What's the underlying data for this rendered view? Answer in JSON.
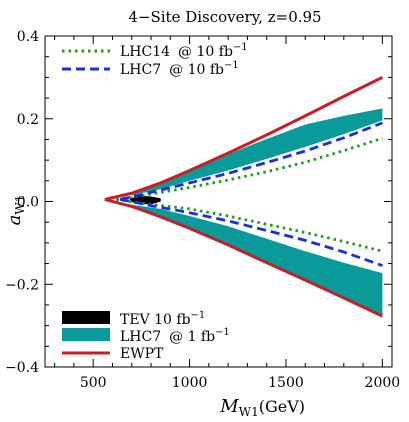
{
  "chart_data": {
    "type": "line",
    "title": "4−Site Discovery, z=0.95",
    "xlabel": "M",
    "xlabel_sub": "W1",
    "xlabel_unit": "(GeV)",
    "ylabel": "a",
    "ylabel_sub": "W1",
    "xlim": [
      250,
      2050
    ],
    "ylim": [
      -0.4,
      0.4
    ],
    "x_ticks": [
      500,
      1000,
      1500,
      2000
    ],
    "x_tick_labels": [
      "500",
      "1000",
      "1500",
      "2000"
    ],
    "y_ticks": [
      0.4,
      0.2,
      0.0,
      -0.2,
      -0.4
    ],
    "y_tick_labels": [
      "0.4",
      "0.2",
      "0.0",
      "−0.2",
      "−0.4"
    ],
    "legend_top": [
      {
        "name": "LHC14",
        "at": "@ 10 fb",
        "sup": "−1",
        "color": "#1a9e1a",
        "style": "dotted"
      },
      {
        "name": "LHC7",
        "at": "@ 10 fb",
        "sup": "−1",
        "color": "#1c2fd6",
        "style": "dashed"
      }
    ],
    "legend_bottom": [
      {
        "name": "TEV 10 fb",
        "at": "",
        "sup": "−1",
        "color": "#000000",
        "style": "fill"
      },
      {
        "name": "LHC7",
        "at": "@   1 fb",
        "sup": "−1",
        "color": "#0a9a9a",
        "style": "fill"
      },
      {
        "name": "EWPT",
        "at": "",
        "sup": "",
        "color": "#c81e28",
        "style": "solid"
      }
    ],
    "series": [
      {
        "key": "ewpt_upper",
        "color": "#c81e28",
        "style": "solid",
        "x": [
          560,
          700,
          850,
          1000,
          1200,
          1400,
          1600,
          1800,
          2000
        ],
        "y": [
          0.005,
          0.02,
          0.045,
          0.075,
          0.117,
          0.161,
          0.207,
          0.254,
          0.3
        ]
      },
      {
        "key": "ewpt_lower",
        "color": "#c81e28",
        "style": "solid",
        "x": [
          560,
          700,
          850,
          1000,
          1200,
          1400,
          1600,
          1800,
          2000
        ],
        "y": [
          0.005,
          -0.012,
          -0.037,
          -0.065,
          -0.105,
          -0.148,
          -0.19,
          -0.233,
          -0.277
        ]
      },
      {
        "key": "lhc14_10_upper",
        "color": "#1a9e1a",
        "style": "dotted",
        "x": [
          620,
          800,
          1000,
          1200,
          1400,
          1600,
          1800,
          2000
        ],
        "y": [
          0.005,
          0.018,
          0.034,
          0.052,
          0.072,
          0.095,
          0.123,
          0.153
        ]
      },
      {
        "key": "lhc14_10_lower",
        "color": "#1a9e1a",
        "style": "dotted",
        "x": [
          620,
          800,
          1000,
          1200,
          1400,
          1600,
          1800,
          2000
        ],
        "y": [
          0.005,
          -0.007,
          -0.018,
          -0.035,
          -0.055,
          -0.075,
          -0.097,
          -0.12
        ]
      },
      {
        "key": "lhc7_10_upper",
        "color": "#1c2fd6",
        "style": "dashed",
        "x": [
          640,
          800,
          1000,
          1200,
          1400,
          1600,
          1800,
          2000
        ],
        "y": [
          0.005,
          0.022,
          0.045,
          0.068,
          0.094,
          0.122,
          0.154,
          0.19
        ]
      },
      {
        "key": "lhc7_10_lower",
        "color": "#1c2fd6",
        "style": "dashed",
        "x": [
          640,
          800,
          1000,
          1200,
          1400,
          1600,
          1800,
          2000
        ],
        "y": [
          0.005,
          -0.01,
          -0.027,
          -0.047,
          -0.07,
          -0.094,
          -0.122,
          -0.155
        ]
      }
    ],
    "bands": [
      {
        "key": "lhc7_1fb_upper_band",
        "color": "#0a9a9a",
        "x": [
          700,
          850,
          1000,
          1200,
          1400,
          1600,
          1800,
          2000
        ],
        "y_low": [
          0.015,
          0.03,
          0.05,
          0.075,
          0.103,
          0.132,
          0.163,
          0.196
        ],
        "y_high": [
          0.02,
          0.045,
          0.075,
          0.114,
          0.151,
          0.186,
          0.207,
          0.225
        ]
      },
      {
        "key": "lhc7_1fb_lower_band",
        "color": "#0a9a9a",
        "x": [
          700,
          850,
          1000,
          1200,
          1400,
          1600,
          1800,
          2000
        ],
        "y_high": [
          -0.008,
          -0.018,
          -0.035,
          -0.06,
          -0.09,
          -0.12,
          -0.148,
          -0.173
        ],
        "y_low": [
          -0.012,
          -0.037,
          -0.065,
          -0.105,
          -0.148,
          -0.19,
          -0.233,
          -0.277
        ]
      },
      {
        "key": "tev_10fb_band",
        "color": "#000000",
        "x": [
          690,
          750,
          800,
          850
        ],
        "y_low": [
          0.0,
          -0.006,
          -0.007,
          0.0
        ],
        "y_high": [
          0.008,
          0.014,
          0.012,
          0.008
        ]
      }
    ]
  }
}
